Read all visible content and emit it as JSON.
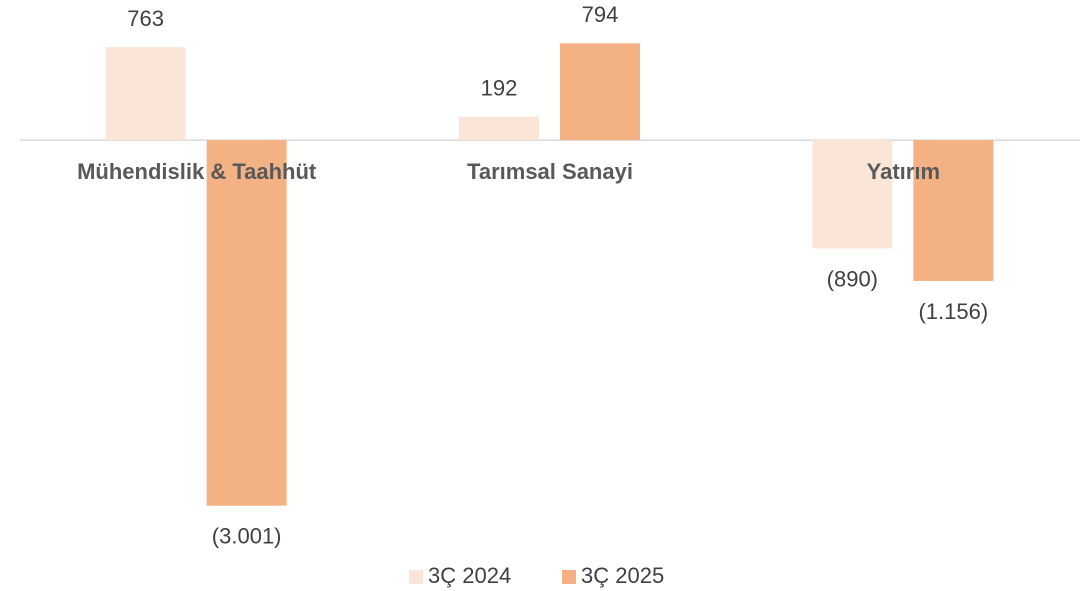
{
  "chart_data": {
    "type": "bar",
    "categories": [
      "Mühendislik & Taahhüt",
      "Tarımsal Sanayi",
      "Yatırım"
    ],
    "series": [
      {
        "name": "3Ç 2024",
        "color": "#fbe5d6",
        "values": [
          763,
          192,
          -890
        ],
        "value_labels": [
          "763",
          "192",
          "(890)"
        ]
      },
      {
        "name": "3Ç 2025",
        "color": "#f4b183",
        "values": [
          -3001,
          794,
          -1156
        ],
        "value_labels": [
          "(3.001)",
          "794",
          "(1.156)"
        ]
      }
    ],
    "ylim": [
      -3200,
      1150
    ],
    "legend": "bottom"
  }
}
